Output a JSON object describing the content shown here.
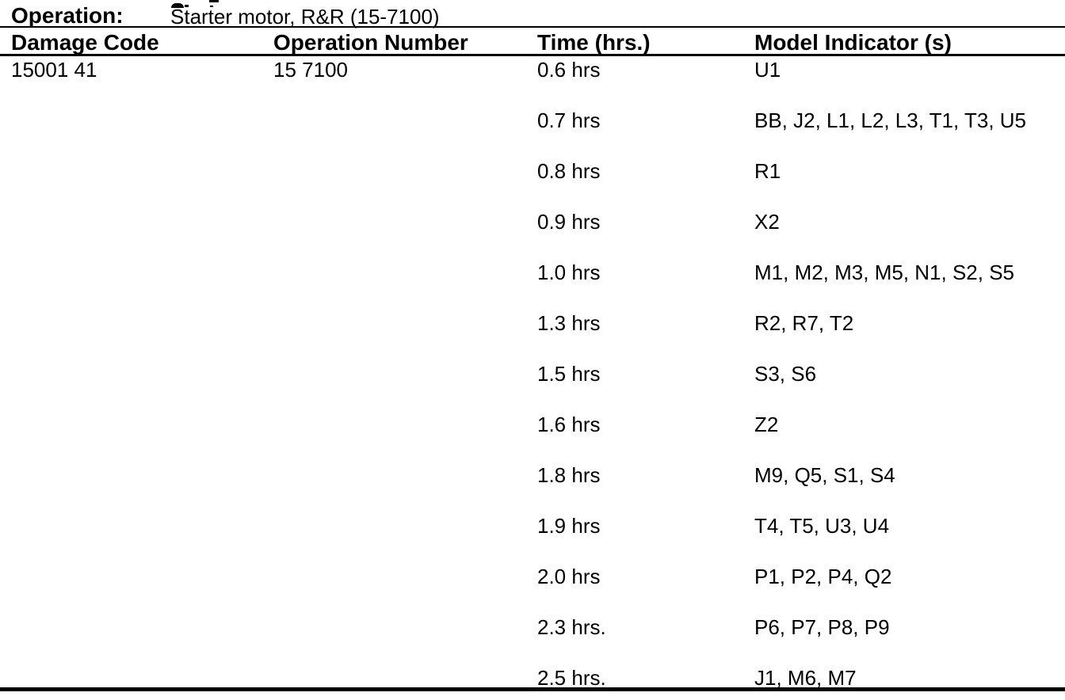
{
  "operation": {
    "label": "Operation:",
    "value": "Starter motor, R&R (15-7100)"
  },
  "table": {
    "headers": [
      "Damage Code",
      "Operation Number",
      "Time (hrs.)",
      "Model Indicator (s)"
    ],
    "damage_code": "15001 41",
    "operation_number": "15 7100",
    "time_rows": [
      {
        "time": "0.6 hrs",
        "models": "U1"
      },
      {
        "time": "0.7 hrs",
        "models": "BB, J2, L1, L2, L3, T1, T3, U5"
      },
      {
        "time": "0.8 hrs",
        "models": "R1"
      },
      {
        "time": "0.9 hrs",
        "models": "X2"
      },
      {
        "time": "1.0 hrs",
        "models": "M1, M2, M3, M5, N1, S2, S5"
      },
      {
        "time": "1.3 hrs",
        "models": "R2, R7, T2"
      },
      {
        "time": "1.5 hrs",
        "models": "S3, S6"
      },
      {
        "time": "1.6 hrs",
        "models": "Z2"
      },
      {
        "time": "1.8 hrs",
        "models": "M9, Q5, S1, S4"
      },
      {
        "time": "1.9 hrs",
        "models": "T4, T5, U3, U4"
      },
      {
        "time": "2.0 hrs",
        "models": "P1, P2, P4, Q2"
      },
      {
        "time": "2.3 hrs.",
        "models": "P6, P7, P8, P9"
      },
      {
        "time": "2.5 hrs.",
        "models": "J1, M6, M7"
      }
    ]
  },
  "colors": {
    "text": "#000000",
    "background": "#ffffff",
    "rule": "#000000"
  }
}
